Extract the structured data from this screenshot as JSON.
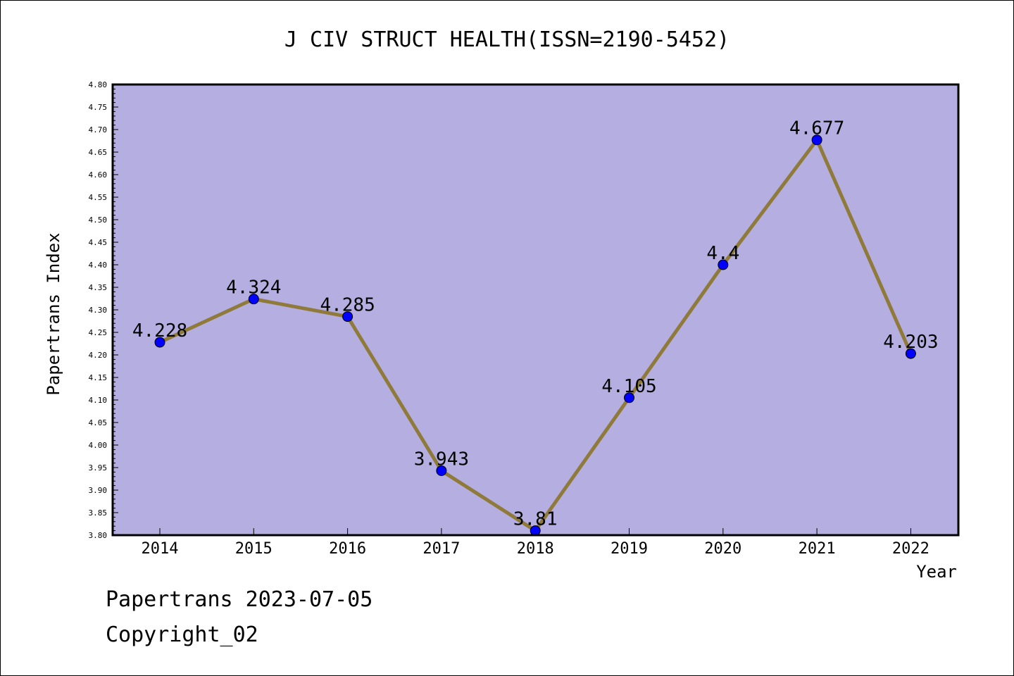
{
  "chart_data": {
    "type": "line",
    "title": "J CIV STRUCT HEALTH(ISSN=2190-5452)",
    "xlabel": "Year",
    "ylabel": "Papertrans Index",
    "categories": [
      "2014",
      "2015",
      "2016",
      "2017",
      "2018",
      "2019",
      "2020",
      "2021",
      "2022"
    ],
    "series": [
      {
        "values": [
          4.228,
          4.324,
          4.285,
          3.943,
          3.81,
          4.105,
          4.4,
          4.677,
          4.203
        ],
        "value_labels": [
          "4.228",
          "4.324",
          "4.285",
          "3.943",
          "3.81",
          "4.105",
          "4.4",
          "4.677",
          "4.203"
        ]
      }
    ],
    "ylim": [
      3.8,
      4.8
    ],
    "yticks": [
      "3.80",
      "3.85",
      "3.90",
      "3.95",
      "4.00",
      "4.05",
      "4.10",
      "4.15",
      "4.20",
      "4.25",
      "4.30",
      "4.35",
      "4.40",
      "4.45",
      "4.50",
      "4.55",
      "4.60",
      "4.65",
      "4.70",
      "4.75",
      "4.80"
    ],
    "grid": false,
    "colors": {
      "plot_background": "#b4aee1",
      "line": "#8f7a3a",
      "marker": "#0000ff"
    }
  },
  "footer": {
    "line1": "Papertrans 2023-07-05",
    "line2": "Copyright_02"
  }
}
